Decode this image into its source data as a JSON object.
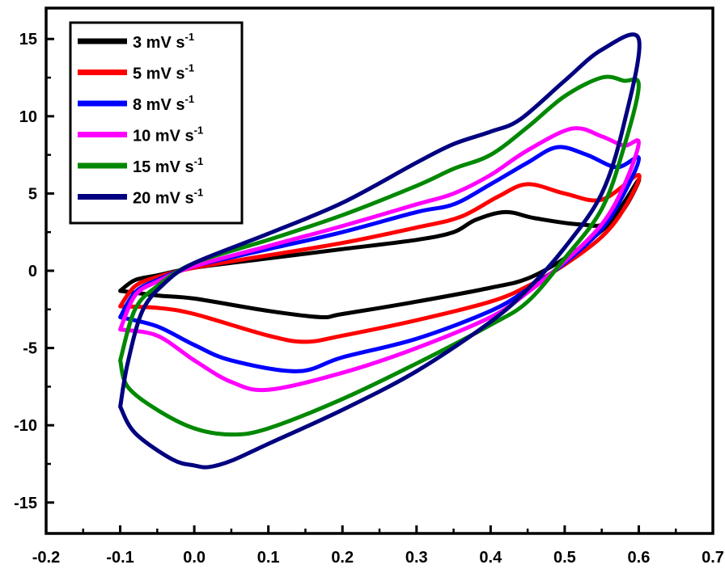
{
  "chart_data": {
    "type": "line",
    "title": "",
    "xlabel": "",
    "ylabel": "",
    "xlim": [
      -0.2,
      0.7
    ],
    "ylim": [
      -17,
      17
    ],
    "x_ticks": [
      "-0.2",
      "-0.1",
      "0.0",
      "0.1",
      "0.2",
      "0.3",
      "0.4",
      "0.5",
      "0.6",
      "0.7"
    ],
    "y_ticks": [
      "15",
      "10",
      "5",
      "0",
      "-5",
      "-10",
      "-15"
    ],
    "x_tick_values": [
      -0.2,
      -0.1,
      0.0,
      0.1,
      0.2,
      0.3,
      0.4,
      0.5,
      0.6,
      0.7
    ],
    "y_tick_values": [
      15,
      10,
      5,
      0,
      -5,
      -10,
      -15
    ],
    "grid": false,
    "legend_position": "top-left",
    "legend_unit": "mV s",
    "legend_exponent": "-1",
    "series": [
      {
        "name": "3 mV s-1",
        "label_value": "3",
        "color": "#000000",
        "points": [
          [
            -0.1,
            -1.3
          ],
          [
            -0.08,
            -0.6
          ],
          [
            -0.05,
            -0.3
          ],
          [
            0.0,
            0.2
          ],
          [
            0.1,
            0.8
          ],
          [
            0.2,
            1.4
          ],
          [
            0.3,
            2.0
          ],
          [
            0.35,
            2.5
          ],
          [
            0.38,
            3.3
          ],
          [
            0.42,
            3.8
          ],
          [
            0.46,
            3.4
          ],
          [
            0.52,
            3.0
          ],
          [
            0.56,
            3.2
          ],
          [
            0.6,
            5.9
          ],
          [
            0.58,
            4.0
          ],
          [
            0.55,
            2.6
          ],
          [
            0.5,
            0.8
          ],
          [
            0.45,
            -0.5
          ],
          [
            0.4,
            -1.1
          ],
          [
            0.3,
            -2.0
          ],
          [
            0.2,
            -2.8
          ],
          [
            0.17,
            -3.0
          ],
          [
            0.1,
            -2.6
          ],
          [
            0.0,
            -1.8
          ],
          [
            -0.05,
            -1.6
          ],
          [
            -0.1,
            -1.3
          ]
        ]
      },
      {
        "name": "5 mV s-1",
        "label_value": "5",
        "color": "#ff0000",
        "points": [
          [
            -0.1,
            -2.3
          ],
          [
            -0.08,
            -1.0
          ],
          [
            -0.05,
            -0.4
          ],
          [
            0.0,
            0.2
          ],
          [
            0.1,
            1.0
          ],
          [
            0.2,
            1.8
          ],
          [
            0.3,
            2.8
          ],
          [
            0.36,
            3.5
          ],
          [
            0.41,
            4.8
          ],
          [
            0.45,
            5.6
          ],
          [
            0.5,
            5.0
          ],
          [
            0.55,
            4.6
          ],
          [
            0.6,
            6.2
          ],
          [
            0.58,
            4.0
          ],
          [
            0.55,
            2.2
          ],
          [
            0.5,
            0.4
          ],
          [
            0.45,
            -1.0
          ],
          [
            0.4,
            -2.0
          ],
          [
            0.3,
            -3.2
          ],
          [
            0.2,
            -4.2
          ],
          [
            0.15,
            -4.6
          ],
          [
            0.1,
            -4.2
          ],
          [
            0.0,
            -2.8
          ],
          [
            -0.05,
            -2.4
          ],
          [
            -0.1,
            -2.3
          ]
        ]
      },
      {
        "name": "8 mV s-1",
        "label_value": "8",
        "color": "#0000ff",
        "points": [
          [
            -0.1,
            -3.0
          ],
          [
            -0.08,
            -1.4
          ],
          [
            -0.05,
            -0.6
          ],
          [
            0.0,
            0.3
          ],
          [
            0.1,
            1.4
          ],
          [
            0.2,
            2.5
          ],
          [
            0.3,
            3.8
          ],
          [
            0.35,
            4.3
          ],
          [
            0.4,
            5.6
          ],
          [
            0.45,
            7.0
          ],
          [
            0.49,
            8.0
          ],
          [
            0.53,
            7.5
          ],
          [
            0.57,
            6.7
          ],
          [
            0.6,
            7.3
          ],
          [
            0.58,
            5.0
          ],
          [
            0.55,
            2.7
          ],
          [
            0.5,
            0.5
          ],
          [
            0.45,
            -1.2
          ],
          [
            0.4,
            -2.6
          ],
          [
            0.3,
            -4.4
          ],
          [
            0.2,
            -5.6
          ],
          [
            0.14,
            -6.5
          ],
          [
            0.05,
            -5.8
          ],
          [
            0.0,
            -4.8
          ],
          [
            -0.05,
            -3.6
          ],
          [
            -0.1,
            -3.0
          ]
        ]
      },
      {
        "name": "10 mV s-1",
        "label_value": "10",
        "color": "#ff00ff",
        "points": [
          [
            -0.1,
            -3.8
          ],
          [
            -0.08,
            -1.6
          ],
          [
            -0.05,
            -0.7
          ],
          [
            0.0,
            0.3
          ],
          [
            0.1,
            1.6
          ],
          [
            0.2,
            2.9
          ],
          [
            0.3,
            4.3
          ],
          [
            0.35,
            5.0
          ],
          [
            0.4,
            6.2
          ],
          [
            0.45,
            7.8
          ],
          [
            0.51,
            9.2
          ],
          [
            0.55,
            8.7
          ],
          [
            0.58,
            8.1
          ],
          [
            0.6,
            8.3
          ],
          [
            0.58,
            5.5
          ],
          [
            0.55,
            3.0
          ],
          [
            0.5,
            0.6
          ],
          [
            0.45,
            -1.4
          ],
          [
            0.4,
            -3.0
          ],
          [
            0.3,
            -5.0
          ],
          [
            0.2,
            -6.6
          ],
          [
            0.1,
            -7.7
          ],
          [
            0.05,
            -7.2
          ],
          [
            0.0,
            -5.8
          ],
          [
            -0.05,
            -4.2
          ],
          [
            -0.1,
            -3.8
          ]
        ]
      },
      {
        "name": "15 mV s-1",
        "label_value": "15",
        "color": "#008800",
        "points": [
          [
            -0.1,
            -5.8
          ],
          [
            -0.08,
            -2.5
          ],
          [
            -0.05,
            -1.0
          ],
          [
            0.0,
            0.5
          ],
          [
            0.1,
            2.0
          ],
          [
            0.2,
            3.6
          ],
          [
            0.3,
            5.5
          ],
          [
            0.35,
            6.6
          ],
          [
            0.4,
            7.5
          ],
          [
            0.45,
            9.3
          ],
          [
            0.5,
            11.3
          ],
          [
            0.55,
            12.5
          ],
          [
            0.58,
            12.3
          ],
          [
            0.6,
            12.0
          ],
          [
            0.58,
            8.0
          ],
          [
            0.55,
            4.0
          ],
          [
            0.5,
            0.8
          ],
          [
            0.45,
            -2.0
          ],
          [
            0.4,
            -3.5
          ],
          [
            0.3,
            -6.0
          ],
          [
            0.2,
            -8.3
          ],
          [
            0.1,
            -10.2
          ],
          [
            0.05,
            -10.6
          ],
          [
            0.0,
            -10.2
          ],
          [
            -0.05,
            -9.0
          ],
          [
            -0.09,
            -7.5
          ],
          [
            -0.1,
            -5.8
          ]
        ]
      },
      {
        "name": "20 mV s-1",
        "label_value": "20",
        "color": "#000080",
        "points": [
          [
            -0.1,
            -8.8
          ],
          [
            -0.09,
            -6.0
          ],
          [
            -0.07,
            -2.6
          ],
          [
            -0.04,
            -0.8
          ],
          [
            0.0,
            0.5
          ],
          [
            0.1,
            2.4
          ],
          [
            0.2,
            4.4
          ],
          [
            0.3,
            7.0
          ],
          [
            0.35,
            8.2
          ],
          [
            0.4,
            9.0
          ],
          [
            0.44,
            9.8
          ],
          [
            0.5,
            12.3
          ],
          [
            0.55,
            14.3
          ],
          [
            0.6,
            15.0
          ],
          [
            0.58,
            9.5
          ],
          [
            0.55,
            5.0
          ],
          [
            0.5,
            1.5
          ],
          [
            0.45,
            -1.2
          ],
          [
            0.4,
            -3.3
          ],
          [
            0.3,
            -6.5
          ],
          [
            0.2,
            -9.0
          ],
          [
            0.1,
            -11.2
          ],
          [
            0.05,
            -12.3
          ],
          [
            0.02,
            -12.7
          ],
          [
            0.0,
            -12.6
          ],
          [
            -0.03,
            -12.2
          ],
          [
            -0.08,
            -10.5
          ],
          [
            -0.1,
            -8.8
          ]
        ]
      }
    ]
  }
}
